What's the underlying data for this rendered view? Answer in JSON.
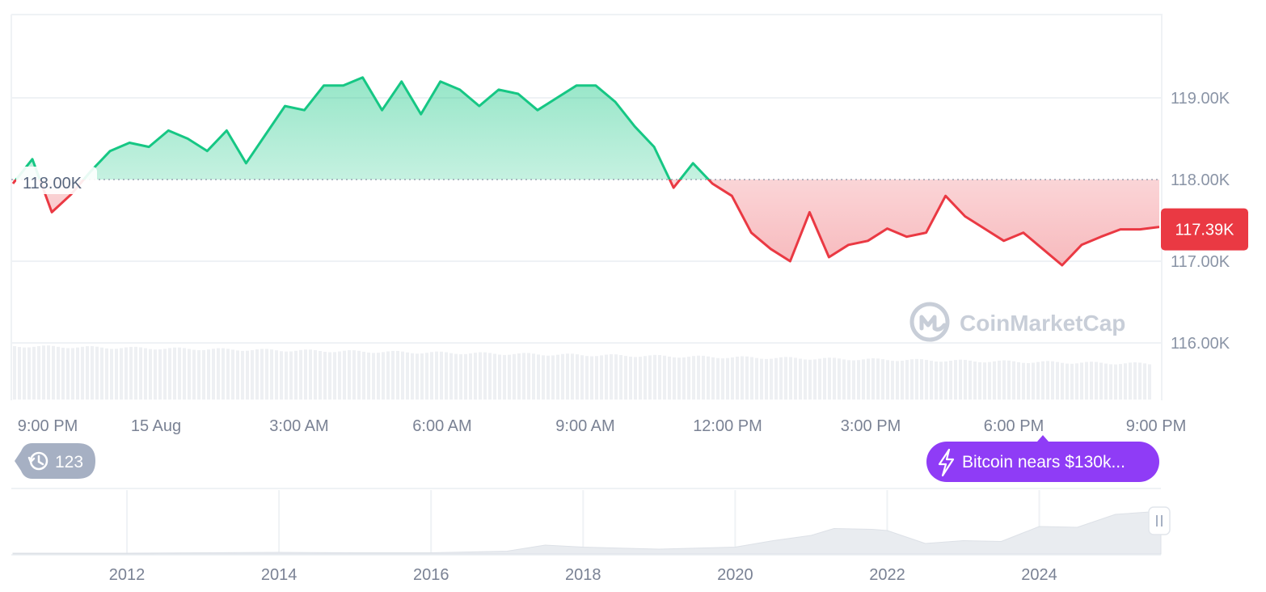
{
  "chart_data": [
    {
      "type": "area",
      "series": [
        {
          "x": [
            "14 Aug 20:00",
            "14 Aug 20:15",
            "14 Aug 20:30",
            "14 Aug 20:45",
            "14 Aug 21:00",
            "14 Aug 21:15",
            "14 Aug 21:30",
            "14 Aug 21:45",
            "14 Aug 22:00",
            "14 Aug 22:30",
            "14 Aug 23:00",
            "14 Aug 23:30",
            "15 Aug 00:00",
            "15 Aug 00:30",
            "15 Aug 01:00",
            "15 Aug 01:30",
            "15 Aug 02:00",
            "15 Aug 02:30",
            "15 Aug 03:00",
            "15 Aug 03:30",
            "15 Aug 04:00",
            "15 Aug 04:30",
            "15 Aug 05:00",
            "15 Aug 05:30",
            "15 Aug 06:00",
            "15 Aug 06:30",
            "15 Aug 07:00",
            "15 Aug 07:30",
            "15 Aug 08:00",
            "15 Aug 08:30",
            "15 Aug 09:00",
            "15 Aug 09:30",
            "15 Aug 10:00",
            "15 Aug 10:30",
            "15 Aug 11:00",
            "15 Aug 11:30",
            "15 Aug 12:00",
            "15 Aug 12:30",
            "15 Aug 13:00",
            "15 Aug 13:30",
            "15 Aug 14:00",
            "15 Aug 14:15",
            "15 Aug 14:30",
            "15 Aug 14:45",
            "15 Aug 15:00",
            "15 Aug 15:15",
            "15 Aug 15:30",
            "15 Aug 15:45",
            "15 Aug 16:00",
            "15 Aug 16:30",
            "15 Aug 17:00",
            "15 Aug 17:30",
            "15 Aug 18:00",
            "15 Aug 18:30",
            "15 Aug 19:00",
            "15 Aug 19:30",
            "15 Aug 20:00",
            "15 Aug 20:30",
            "15 Aug 21:00",
            "15 Aug 21:15"
          ],
          "values": [
            117.95,
            118.25,
            117.6,
            117.82,
            118.1,
            118.35,
            118.45,
            118.4,
            118.6,
            118.5,
            118.35,
            118.6,
            118.2,
            118.55,
            118.9,
            118.85,
            119.15,
            119.15,
            119.25,
            118.85,
            119.2,
            118.8,
            119.2,
            119.1,
            118.9,
            119.1,
            119.05,
            118.85,
            119.0,
            119.15,
            119.15,
            118.95,
            118.65,
            118.4,
            117.9,
            118.2,
            117.95,
            117.8,
            117.35,
            117.15,
            117.0,
            117.6,
            117.05,
            117.2,
            117.25,
            117.4,
            117.3,
            117.35,
            117.8,
            117.55,
            117.4,
            117.25,
            117.35,
            117.15,
            116.95,
            117.2,
            117.3,
            117.39,
            117.39,
            117.42
          ]
        }
      ],
      "reference_value": 118.0,
      "reference_label": "118.00K",
      "current_price": 117.39,
      "current_price_label": "117.39K",
      "ylim": [
        115.3,
        120.0
      ],
      "y_ticks": [
        {
          "value": 119.0,
          "label": "119.00K"
        },
        {
          "value": 118.0,
          "label": "118.00K"
        },
        {
          "value": 117.0,
          "label": "117.00K"
        },
        {
          "value": 116.0,
          "label": "116.00K"
        }
      ],
      "x_ticks": [
        "9:00 PM",
        "15 Aug",
        "3:00 AM",
        "6:00 AM",
        "9:00 AM",
        "12:00 PM",
        "3:00 PM",
        "6:00 PM",
        "9:00 PM"
      ],
      "colors": {
        "up": "#16c784",
        "down": "#ea3943",
        "grid": "#eff2f5",
        "volume": "#eef0f3"
      },
      "grid": true
    },
    {
      "type": "area",
      "x": [
        2010.5,
        2011,
        2012,
        2013,
        2014,
        2015,
        2016,
        2017,
        2017.5,
        2018,
        2019,
        2020,
        2020.5,
        2021,
        2021.3,
        2021.8,
        2022,
        2022.5,
        2023,
        2023.5,
        2024,
        2024.5,
        2025,
        2025.6
      ],
      "values": [
        0,
        0,
        0,
        0.1,
        0.2,
        0.1,
        0.1,
        0.5,
        2,
        1.5,
        1,
        1.5,
        2.5,
        5,
        5.5,
        6.5,
        5,
        3,
        2.5,
        3.5,
        6,
        7,
        9,
        11
      ],
      "x_ticks": [
        "2012",
        "2014",
        "2016",
        "2018",
        "2020",
        "2022",
        "2024"
      ],
      "grid": true
    }
  ],
  "watermark": {
    "text": "CoinMarketCap"
  },
  "history_badge": {
    "count": "123",
    "icon": "history-icon"
  },
  "news_pill": {
    "text": "Bitcoin nears $130k...",
    "icon": "lightning-icon",
    "color": "#8f3cf6"
  },
  "nav_handle": {
    "icon": "pause-icon"
  }
}
